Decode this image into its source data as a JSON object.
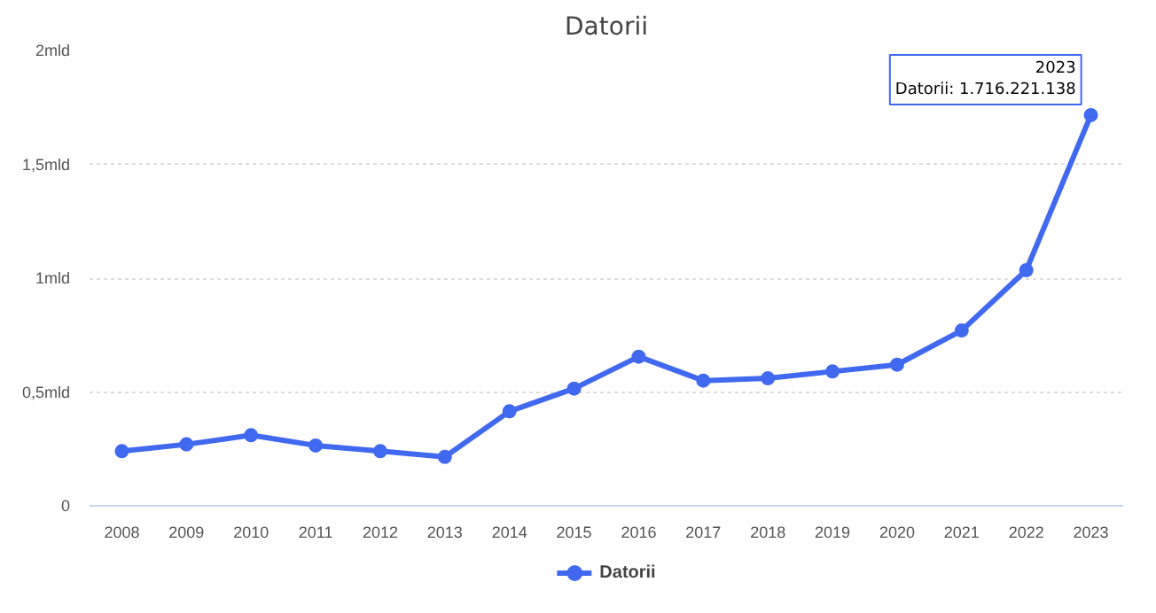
{
  "chart_data": {
    "type": "line",
    "title": "Datorii",
    "categories": [
      "2008",
      "2009",
      "2010",
      "2011",
      "2012",
      "2013",
      "2014",
      "2015",
      "2016",
      "2017",
      "2018",
      "2019",
      "2020",
      "2021",
      "2022",
      "2023"
    ],
    "series": [
      {
        "name": "Datorii",
        "color": "#4169f0",
        "values": [
          0.24,
          0.27,
          0.31,
          0.265,
          0.24,
          0.215,
          0.415,
          0.515,
          0.655,
          0.55,
          0.56,
          0.59,
          0.62,
          0.77,
          1.035,
          1.716221138
        ]
      }
    ],
    "ylim": [
      0,
      2
    ],
    "yticks": [
      0,
      {
        "value": 0.5,
        "label": "0,5mld"
      },
      {
        "value": 1,
        "label": "1mld"
      },
      {
        "value": 1.5,
        "label": "1,5mld"
      },
      {
        "value": 2,
        "label": "2mld"
      }
    ],
    "grid": "y",
    "legend": "bottom",
    "marker": "circle",
    "line_style": "solid",
    "annotations": [
      {
        "text": "2023\nDatorii: 1.716.221.138",
        "x": "2023",
        "y": 1.716221138
      }
    ]
  }
}
